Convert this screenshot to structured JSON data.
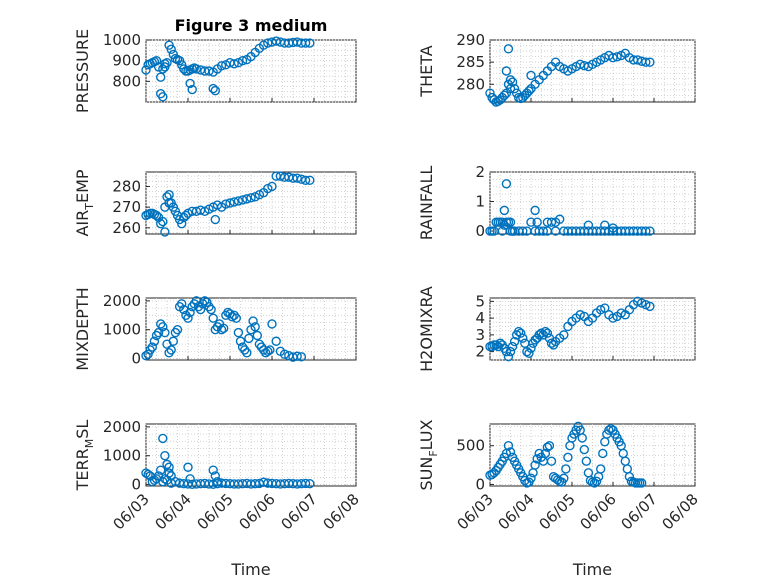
{
  "figure_title": "Figure 3 medium",
  "colors": {
    "marker": "#0072BD",
    "axes": "#262626",
    "grid": "#c8c8c8"
  },
  "time_ticks": [
    "06/03",
    "06/04",
    "06/05",
    "06/06",
    "06/07",
    "06/08"
  ],
  "chart_data": [
    {
      "id": "pressure",
      "type": "scatter",
      "title": "Figure 3 medium",
      "ylabel": "PRESSURE",
      "xlabel": "",
      "xlim": [
        0,
        5
      ],
      "ylim": [
        700,
        1000
      ],
      "yticks": [
        800,
        900,
        1000
      ],
      "x": [
        0.0,
        0.05,
        0.1,
        0.15,
        0.2,
        0.25,
        0.3,
        0.35,
        0.4,
        0.45,
        0.5,
        0.55,
        0.6,
        0.65,
        0.7,
        0.75,
        0.8,
        0.85,
        0.9,
        0.95,
        1.0,
        1.05,
        1.1,
        1.15,
        1.2,
        1.3,
        1.4,
        1.5,
        1.6,
        1.7,
        1.8,
        1.9,
        2.0,
        2.1,
        2.2,
        2.3,
        2.4,
        2.5,
        2.6,
        2.7,
        2.8,
        2.9,
        3.0,
        3.1,
        3.2,
        3.3,
        3.4,
        3.5,
        3.6,
        3.7,
        3.8,
        3.9,
        0.35,
        0.4,
        0.45,
        1.05,
        1.1,
        1.6,
        1.65
      ],
      "y": [
        855,
        880,
        885,
        890,
        895,
        900,
        870,
        820,
        860,
        885,
        890,
        975,
        955,
        930,
        910,
        905,
        900,
        880,
        860,
        850,
        850,
        855,
        860,
        865,
        860,
        855,
        850,
        850,
        845,
        860,
        875,
        880,
        890,
        885,
        890,
        900,
        905,
        920,
        940,
        960,
        975,
        985,
        990,
        995,
        990,
        985,
        985,
        988,
        990,
        985,
        985,
        985,
        740,
        725,
        870,
        790,
        760,
        765,
        755
      ]
    },
    {
      "id": "theta",
      "type": "scatter",
      "title": "",
      "ylabel": "THETA",
      "xlabel": "",
      "xlim": [
        0,
        5
      ],
      "ylim": [
        276,
        290
      ],
      "yticks": [
        280,
        285,
        290
      ],
      "x": [
        0.0,
        0.05,
        0.1,
        0.15,
        0.2,
        0.25,
        0.3,
        0.35,
        0.4,
        0.45,
        0.5,
        0.55,
        0.6,
        0.65,
        0.7,
        0.75,
        0.8,
        0.85,
        0.9,
        0.95,
        1.0,
        1.1,
        1.2,
        1.3,
        1.4,
        1.5,
        1.6,
        1.7,
        1.8,
        1.9,
        2.0,
        2.1,
        2.2,
        2.3,
        2.4,
        2.5,
        2.6,
        2.7,
        2.8,
        2.9,
        3.0,
        3.1,
        3.2,
        3.3,
        3.4,
        3.5,
        3.6,
        3.7,
        3.8,
        3.9,
        0.4,
        0.45,
        0.5,
        1.0
      ],
      "y": [
        278,
        277,
        276.5,
        276,
        276.2,
        276.5,
        277,
        277.5,
        278,
        280,
        281,
        280.5,
        279,
        278,
        277,
        276.8,
        277,
        277.5,
        278,
        278.5,
        279,
        280,
        281,
        282,
        283,
        284,
        285,
        284,
        283.5,
        283,
        283.5,
        284,
        284.5,
        284.2,
        284,
        284.5,
        285,
        285.5,
        286,
        286.5,
        286,
        286.2,
        286.5,
        287,
        286,
        285.5,
        285.5,
        285.2,
        285,
        285,
        283,
        288,
        279,
        282
      ]
    },
    {
      "id": "air_temp",
      "type": "scatter",
      "title": "",
      "ylabel": "AIR_TEMP",
      "xlabel": "",
      "xlim": [
        0,
        5
      ],
      "ylim": [
        257,
        287
      ],
      "yticks": [
        260,
        270,
        280
      ],
      "x": [
        0.0,
        0.05,
        0.1,
        0.15,
        0.2,
        0.25,
        0.3,
        0.35,
        0.4,
        0.45,
        0.5,
        0.55,
        0.6,
        0.65,
        0.7,
        0.75,
        0.8,
        0.85,
        0.9,
        0.95,
        1.0,
        1.1,
        1.2,
        1.3,
        1.4,
        1.5,
        1.6,
        1.7,
        1.8,
        1.9,
        2.0,
        2.1,
        2.2,
        2.3,
        2.4,
        2.5,
        2.6,
        2.7,
        2.8,
        2.9,
        3.0,
        3.1,
        3.2,
        3.3,
        3.4,
        3.5,
        3.6,
        3.7,
        3.8,
        3.9,
        0.45,
        0.55,
        1.65
      ],
      "y": [
        266,
        266.5,
        267,
        267,
        266.5,
        266,
        265,
        262,
        263,
        270,
        275,
        276,
        272,
        270,
        268,
        266,
        264,
        262,
        265,
        266,
        267,
        268,
        268,
        268.5,
        268,
        269,
        270,
        271,
        270,
        271.5,
        272,
        272.5,
        273,
        273.5,
        274,
        274.5,
        275,
        276,
        277,
        279,
        280,
        285,
        285,
        284.5,
        284.5,
        284,
        284,
        283.5,
        283,
        283,
        258,
        272,
        264
      ]
    },
    {
      "id": "rainfall",
      "type": "scatter",
      "title": "",
      "ylabel": "RAINFALL",
      "xlabel": "",
      "xlim": [
        0,
        5
      ],
      "ylim": [
        -0.1,
        2
      ],
      "yticks": [
        0,
        1,
        2
      ],
      "x": [
        0.0,
        0.05,
        0.1,
        0.15,
        0.2,
        0.25,
        0.3,
        0.35,
        0.4,
        0.45,
        0.5,
        0.55,
        0.6,
        0.7,
        0.8,
        0.9,
        1.0,
        1.1,
        1.2,
        1.3,
        1.4,
        1.5,
        1.6,
        1.7,
        1.8,
        1.9,
        2.0,
        2.1,
        2.2,
        2.3,
        2.4,
        2.5,
        2.6,
        2.7,
        2.8,
        2.9,
        3.0,
        3.1,
        3.2,
        3.3,
        3.4,
        3.5,
        3.6,
        3.7,
        3.8,
        3.9,
        0.3,
        0.35,
        0.4,
        0.5,
        0.55,
        1.1,
        1.15,
        1.4,
        1.6,
        2.4,
        2.8,
        3.0
      ],
      "y": [
        0,
        0,
        0,
        0.3,
        0.3,
        0.3,
        0,
        0.7,
        1.6,
        0.3,
        0,
        0,
        0,
        0,
        0,
        0,
        0.3,
        0,
        0,
        0,
        0,
        0.3,
        0,
        0.4,
        0,
        0,
        0,
        0,
        0,
        0,
        0,
        0,
        0,
        0,
        0,
        0,
        0,
        0,
        0,
        0,
        0,
        0,
        0,
        0,
        0,
        0,
        0.3,
        0.2,
        0.3,
        0.3,
        0,
        0.7,
        0.3,
        0.3,
        0.3,
        0.2,
        0.2,
        0.1
      ]
    },
    {
      "id": "mixdepth",
      "type": "scatter",
      "title": "",
      "ylabel": "MIXDEPTH",
      "xlabel": "",
      "xlim": [
        0,
        5
      ],
      "ylim": [
        -50,
        2100
      ],
      "yticks": [
        0,
        1000,
        2000
      ],
      "x": [
        0.0,
        0.05,
        0.1,
        0.15,
        0.2,
        0.25,
        0.3,
        0.35,
        0.4,
        0.45,
        0.5,
        0.55,
        0.6,
        0.65,
        0.7,
        0.75,
        0.8,
        0.85,
        0.9,
        0.95,
        1.0,
        1.05,
        1.1,
        1.15,
        1.2,
        1.25,
        1.3,
        1.35,
        1.4,
        1.45,
        1.5,
        1.55,
        1.6,
        1.65,
        1.7,
        1.75,
        1.8,
        1.85,
        1.9,
        1.95,
        2.0,
        2.05,
        2.1,
        2.15,
        2.2,
        2.25,
        2.3,
        2.35,
        2.4,
        2.45,
        2.5,
        2.55,
        2.6,
        2.65,
        2.7,
        2.75,
        2.8,
        2.85,
        2.9,
        2.95,
        3.0,
        3.1,
        3.2,
        3.3,
        3.4,
        3.5,
        3.6,
        3.7
      ],
      "y": [
        100,
        150,
        300,
        400,
        600,
        800,
        900,
        1200,
        1100,
        900,
        500,
        200,
        300,
        600,
        900,
        1000,
        1800,
        1900,
        1700,
        1500,
        1400,
        1600,
        1800,
        1900,
        2000,
        1800,
        1700,
        1900,
        2000,
        1950,
        1800,
        1700,
        1400,
        1000,
        1100,
        1200,
        1000,
        1050,
        1500,
        1600,
        1550,
        1450,
        1500,
        1400,
        900,
        600,
        400,
        300,
        200,
        700,
        1000,
        1300,
        1100,
        800,
        500,
        400,
        300,
        200,
        250,
        300,
        1200,
        600,
        250,
        150,
        100,
        50,
        80,
        60
      ]
    },
    {
      "id": "h2omixra",
      "type": "scatter",
      "title": "",
      "ylabel": "H2OMIXRA",
      "xlabel": "",
      "xlim": [
        0,
        5
      ],
      "ylim": [
        1.5,
        5.2
      ],
      "yticks": [
        2,
        3,
        4,
        5
      ],
      "x": [
        0.0,
        0.05,
        0.1,
        0.15,
        0.2,
        0.25,
        0.3,
        0.35,
        0.4,
        0.45,
        0.5,
        0.55,
        0.6,
        0.65,
        0.7,
        0.75,
        0.8,
        0.85,
        0.9,
        0.95,
        1.0,
        1.05,
        1.1,
        1.15,
        1.2,
        1.25,
        1.3,
        1.35,
        1.4,
        1.45,
        1.5,
        1.55,
        1.6,
        1.7,
        1.8,
        1.9,
        2.0,
        2.1,
        2.2,
        2.3,
        2.4,
        2.5,
        2.6,
        2.7,
        2.8,
        2.9,
        3.0,
        3.1,
        3.2,
        3.3,
        3.4,
        3.5,
        3.6,
        3.7,
        3.8,
        3.9
      ],
      "y": [
        2.3,
        2.3,
        2.4,
        2.4,
        2.3,
        2.5,
        2.4,
        2.2,
        2.0,
        1.7,
        2.0,
        2.3,
        2.6,
        3.0,
        3.2,
        3.1,
        2.8,
        2.5,
        2.0,
        1.9,
        2.2,
        2.5,
        2.7,
        2.8,
        3.0,
        3.1,
        3.0,
        3.2,
        3.1,
        2.8,
        2.5,
        2.4,
        2.6,
        2.8,
        3.0,
        3.5,
        3.8,
        4.0,
        4.2,
        4.1,
        3.8,
        4.0,
        4.3,
        4.5,
        4.6,
        4.2,
        4.0,
        4.1,
        4.3,
        4.2,
        4.5,
        4.8,
        5.0,
        4.9,
        4.8,
        4.7
      ]
    },
    {
      "id": "terr_msl",
      "type": "scatter",
      "title": "",
      "ylabel": "TERR_MSL",
      "xlabel": "Time",
      "xlim": [
        0,
        5
      ],
      "ylim": [
        -50,
        2100
      ],
      "yticks": [
        0,
        1000,
        2000
      ],
      "x": [
        0.0,
        0.05,
        0.1,
        0.15,
        0.2,
        0.25,
        0.3,
        0.35,
        0.4,
        0.45,
        0.5,
        0.55,
        0.6,
        0.7,
        0.8,
        0.9,
        1.0,
        1.1,
        1.2,
        1.3,
        1.4,
        1.5,
        1.6,
        1.7,
        1.8,
        1.9,
        2.0,
        2.1,
        2.2,
        2.3,
        2.4,
        2.5,
        2.6,
        2.7,
        2.8,
        2.9,
        3.0,
        3.1,
        3.2,
        3.3,
        3.4,
        3.5,
        3.6,
        3.7,
        3.8,
        3.9,
        0.4,
        0.45,
        0.5,
        0.55,
        1.0,
        1.05,
        1.6,
        1.65,
        1.7,
        0.6
      ],
      "y": [
        400,
        350,
        300,
        100,
        150,
        200,
        300,
        500,
        1600,
        1000,
        700,
        600,
        300,
        100,
        50,
        30,
        20,
        10,
        20,
        30,
        40,
        20,
        10,
        30,
        50,
        40,
        30,
        20,
        20,
        30,
        40,
        20,
        30,
        40,
        80,
        50,
        40,
        30,
        20,
        30,
        40,
        30,
        20,
        30,
        40,
        30,
        100,
        200,
        150,
        400,
        600,
        200,
        500,
        300,
        100,
        50
      ]
    },
    {
      "id": "sun_flux",
      "type": "scatter",
      "title": "",
      "ylabel": "SUN_FLUX",
      "xlabel": "Time",
      "xlim": [
        0,
        5
      ],
      "ylim": [
        -20,
        780
      ],
      "yticks": [
        0,
        500
      ],
      "x": [
        0.0,
        0.05,
        0.1,
        0.15,
        0.2,
        0.25,
        0.3,
        0.35,
        0.4,
        0.45,
        0.5,
        0.55,
        0.6,
        0.65,
        0.7,
        0.75,
        0.8,
        0.85,
        0.9,
        0.95,
        1.0,
        1.05,
        1.1,
        1.15,
        1.2,
        1.25,
        1.3,
        1.35,
        1.4,
        1.45,
        1.5,
        1.55,
        1.6,
        1.65,
        1.7,
        1.75,
        1.8,
        1.85,
        1.9,
        1.95,
        2.0,
        2.05,
        2.1,
        2.15,
        2.2,
        2.25,
        2.3,
        2.35,
        2.4,
        2.45,
        2.5,
        2.55,
        2.6,
        2.65,
        2.7,
        2.75,
        2.8,
        2.85,
        2.9,
        2.95,
        3.0,
        3.05,
        3.1,
        3.15,
        3.2,
        3.25,
        3.3,
        3.35,
        3.4,
        3.45,
        3.5,
        3.55,
        3.6,
        3.65,
        3.7
      ],
      "y": [
        120,
        130,
        150,
        180,
        220,
        260,
        300,
        350,
        400,
        500,
        420,
        350,
        300,
        250,
        200,
        150,
        100,
        50,
        20,
        30,
        80,
        150,
        250,
        330,
        400,
        350,
        300,
        400,
        480,
        500,
        300,
        100,
        80,
        60,
        40,
        30,
        80,
        200,
        350,
        500,
        600,
        650,
        700,
        750,
        700,
        600,
        450,
        300,
        150,
        50,
        30,
        20,
        40,
        100,
        200,
        400,
        550,
        650,
        700,
        720,
        700,
        650,
        600,
        550,
        500,
        400,
        300,
        200,
        100,
        40,
        30,
        20,
        20,
        20,
        20
      ]
    }
  ]
}
